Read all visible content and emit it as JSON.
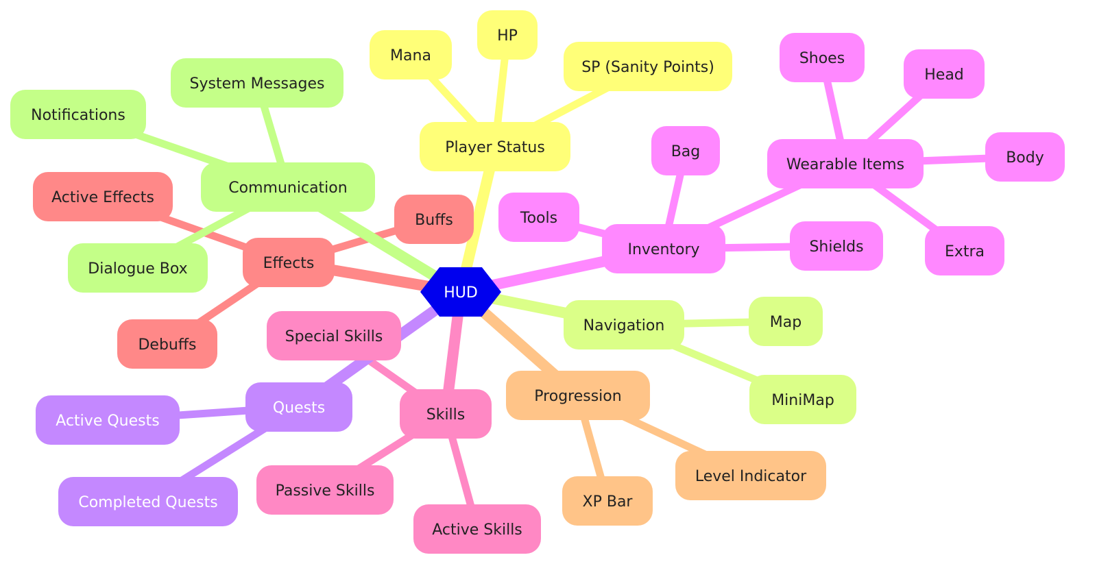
{
  "root": {
    "label": "HUD",
    "color": "#0000ee",
    "text_color": "#ffffff"
  },
  "branches": [
    {
      "id": "player-status",
      "label": "Player Status",
      "color": "#ffff78",
      "text_color": "#222222",
      "children": [
        {
          "id": "hp",
          "label": "HP"
        },
        {
          "id": "mana",
          "label": "Mana"
        },
        {
          "id": "sp",
          "label": "SP (Sanity Points)"
        }
      ]
    },
    {
      "id": "inventory",
      "label": "Inventory",
      "color": "#ff88ff",
      "text_color": "#222222",
      "children": [
        {
          "id": "bag",
          "label": "Bag"
        },
        {
          "id": "tools",
          "label": "Tools"
        },
        {
          "id": "shields",
          "label": "Shields"
        },
        {
          "id": "wearable-items",
          "label": "Wearable Items",
          "children": [
            {
              "id": "shoes",
              "label": "Shoes"
            },
            {
              "id": "head",
              "label": "Head"
            },
            {
              "id": "body",
              "label": "Body"
            },
            {
              "id": "extra",
              "label": "Extra"
            }
          ]
        }
      ]
    },
    {
      "id": "navigation",
      "label": "Navigation",
      "color": "#dbff88",
      "text_color": "#222222",
      "children": [
        {
          "id": "map",
          "label": "Map"
        },
        {
          "id": "minimap",
          "label": "MiniMap"
        }
      ]
    },
    {
      "id": "progression",
      "label": "Progression",
      "color": "#ffc488",
      "text_color": "#222222",
      "children": [
        {
          "id": "xp-bar",
          "label": "XP Bar"
        },
        {
          "id": "level-indicator",
          "label": "Level Indicator"
        }
      ]
    },
    {
      "id": "skills",
      "label": "Skills",
      "color": "#ff88c4",
      "text_color": "#222222",
      "children": [
        {
          "id": "special-skills",
          "label": "Special Skills"
        },
        {
          "id": "passive-skills",
          "label": "Passive Skills"
        },
        {
          "id": "active-skills",
          "label": "Active Skills"
        }
      ]
    },
    {
      "id": "quests",
      "label": "Quests",
      "color": "#c488ff",
      "text_color": "#ffffff",
      "children": [
        {
          "id": "active-quests",
          "label": "Active Quests"
        },
        {
          "id": "completed-quests",
          "label": "Completed Quests"
        }
      ]
    },
    {
      "id": "effects",
      "label": "Effects",
      "color": "#ff8888",
      "text_color": "#222222",
      "children": [
        {
          "id": "active-effects",
          "label": "Active Effects"
        },
        {
          "id": "buffs",
          "label": "Buffs"
        },
        {
          "id": "debuffs",
          "label": "Debuffs"
        }
      ]
    },
    {
      "id": "communication",
      "label": "Communication",
      "color": "#c4ff88",
      "text_color": "#222222",
      "children": [
        {
          "id": "notifications",
          "label": "Notifications"
        },
        {
          "id": "system-messages",
          "label": "System Messages"
        },
        {
          "id": "dialogue-box",
          "label": "Dialogue Box"
        }
      ]
    }
  ]
}
